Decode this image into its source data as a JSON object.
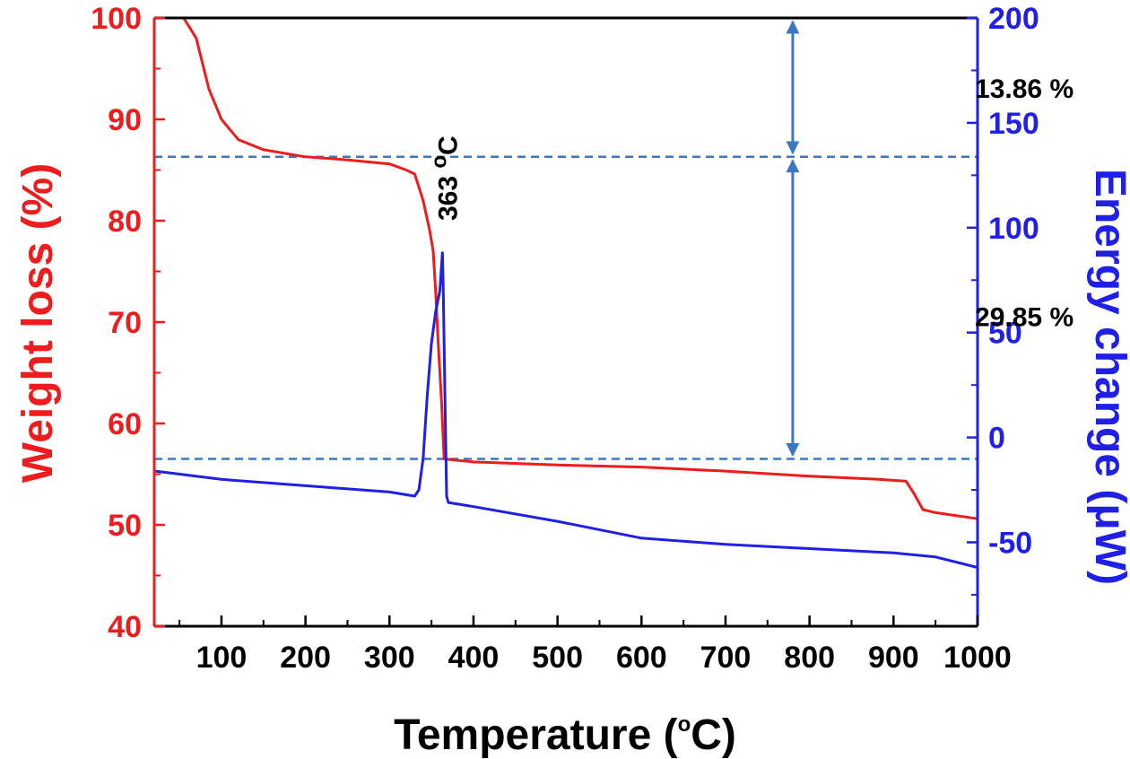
{
  "chart_data": {
    "type": "line",
    "title": "",
    "xlabel": {
      "text": "Temperature (",
      "superscript": "o",
      "suffix": "C)"
    },
    "ylabel_left": "Weight loss (%)",
    "ylabel_right": "Energy change (μW)",
    "xlim": [
      20,
      1000
    ],
    "ylim_left": [
      40,
      100
    ],
    "ylim_right": [
      -90,
      200
    ],
    "x_ticks": [
      100,
      200,
      300,
      400,
      500,
      600,
      700,
      800,
      900,
      1000
    ],
    "x_tick_labels": [
      "100",
      "200",
      "300",
      "400",
      "500",
      "600",
      "700",
      "800",
      "900",
      "1000"
    ],
    "y_left_ticks": [
      40,
      50,
      60,
      70,
      80,
      90,
      100
    ],
    "y_left_tick_labels": [
      "40",
      "50",
      "60",
      "70",
      "80",
      "90",
      "100"
    ],
    "y_right_ticks": [
      -50,
      0,
      50,
      100,
      150,
      200
    ],
    "y_right_tick_labels": [
      "-50",
      "0",
      "50",
      "100",
      "150",
      "200"
    ],
    "grid": false,
    "series": [
      {
        "name": "Weight loss",
        "axis": "left",
        "color": "#ee1c1c",
        "x": [
          20,
          55,
          70,
          85,
          100,
          120,
          150,
          200,
          250,
          300,
          320,
          330,
          340,
          348,
          352,
          355,
          358,
          362,
          365,
          400,
          500,
          600,
          700,
          800,
          880,
          915,
          925,
          935,
          950,
          1000
        ],
        "y": [
          100,
          100,
          98,
          93,
          90,
          88,
          87,
          86.3,
          86,
          85.6,
          85,
          84.6,
          82,
          79,
          77,
          73,
          68,
          62,
          56.5,
          56.2,
          55.9,
          55.7,
          55.3,
          54.8,
          54.5,
          54.3,
          53,
          51.5,
          51.2,
          50.6
        ]
      },
      {
        "name": "Energy change",
        "axis": "right",
        "color": "#1f1fe6",
        "x": [
          20,
          100,
          200,
          300,
          330,
          335,
          340,
          345,
          350,
          355,
          360,
          363,
          364,
          366,
          368,
          370,
          400,
          500,
          600,
          700,
          800,
          900,
          950,
          1000
        ],
        "y": [
          -16,
          -20,
          -23,
          -26,
          -28,
          -25,
          -10,
          20,
          45,
          60,
          70,
          88,
          72,
          20,
          -28,
          -31,
          -33,
          -40,
          -48,
          -51,
          -53,
          -55,
          -57,
          -62
        ]
      }
    ],
    "annotations": [
      {
        "text": "13.86 %",
        "x": 920,
        "y_left": 93
      },
      {
        "text": "29.85 %",
        "x": 920,
        "y_left": 70.5
      },
      {
        "text": "363 ",
        "superscript": "o",
        "suffix": "C",
        "x": 363,
        "y_left": 80,
        "rotation": -90
      }
    ],
    "reference_lines": {
      "y_left": [
        86.3,
        56.5
      ],
      "color": "#3b78c4",
      "style": "dashed"
    },
    "arrows": [
      {
        "x": 780,
        "from_y_left": 100,
        "to_y_left": 86.3
      },
      {
        "x": 780,
        "from_y_left": 86.3,
        "to_y_left": 56.5
      }
    ],
    "colors": {
      "left_axis": "#ee1c1c",
      "right_axis": "#1f1fe6",
      "reference": "#3b78c4",
      "text": "#000000"
    }
  }
}
